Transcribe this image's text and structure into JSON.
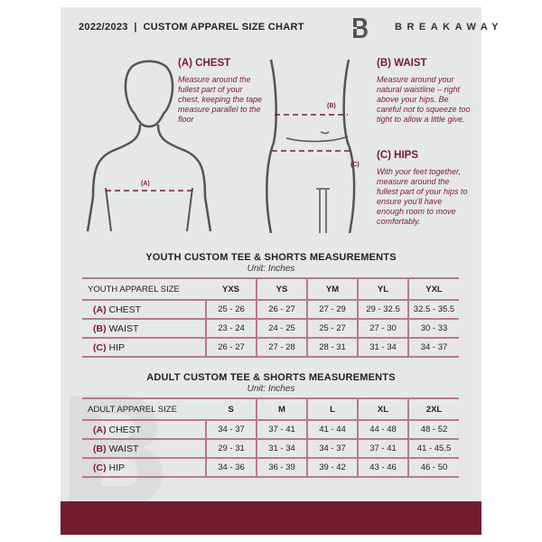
{
  "header": {
    "title": "2022/2023  |  CUSTOM APPAREL SIZE CHART",
    "brand": "BREAKAWAY",
    "logo_letter": "B"
  },
  "measure": {
    "chest": {
      "heading": "(A) CHEST",
      "text": "Measure around the fullest part of your chest, keeping the tape measure parallel to the floor",
      "tag": "(A)"
    },
    "waist": {
      "heading": "(B) WAIST",
      "text": "Measure around your natural waistline – right above your hips. Be careful not to squeeze too tight to allow a little give.",
      "tag": "(B)"
    },
    "hips": {
      "heading": "(C) HIPS",
      "text": "With your feet together, measure around the fullest part of your hips to ensure you'll have enough room to move comfortably.",
      "tag": "(C)"
    }
  },
  "accent": "#731b30",
  "youth": {
    "title": "YOUTH CUSTOM TEE & SHORTS MEASUREMENTS",
    "unit": "Unit: Inches",
    "headers": [
      "YOUTH APPAREL SIZE",
      "YXS",
      "YS",
      "YM",
      "YL",
      "YXL"
    ],
    "rows": [
      {
        "code": "(A)",
        "label": "CHEST",
        "values": [
          "25 - 26",
          "26 - 27",
          "27 - 29",
          "29 - 32.5",
          "32.5 - 35.5"
        ]
      },
      {
        "code": "(B)",
        "label": "WAIST",
        "values": [
          "23 - 24",
          "24 - 25",
          "25 - 27",
          "27 - 30",
          "30 - 33"
        ]
      },
      {
        "code": "(C)",
        "label": "HIP",
        "values": [
          "26 - 27",
          "27 - 28",
          "28 - 31",
          "31 - 34",
          "34 - 37"
        ]
      }
    ]
  },
  "adult": {
    "title": "ADULT CUSTOM TEE & SHORTS MEASUREMENTS",
    "unit": "Unit: Inches",
    "headers": [
      "ADULT APPAREL SIZE",
      "S",
      "M",
      "L",
      "XL",
      "2XL"
    ],
    "rows": [
      {
        "code": "(A)",
        "label": "CHEST",
        "values": [
          "34 - 37",
          "37 - 41",
          "41 - 44",
          "44 - 48",
          "48 - 52"
        ]
      },
      {
        "code": "(B)",
        "label": "WAIST",
        "values": [
          "29 - 31",
          "31 - 34",
          "34 - 37",
          "37 - 41",
          "41 - 45.5"
        ]
      },
      {
        "code": "(C)",
        "label": "HIP",
        "values": [
          "34 - 36",
          "36 - 39",
          "39 - 42",
          "43 - 46",
          "46 - 50"
        ]
      }
    ]
  }
}
